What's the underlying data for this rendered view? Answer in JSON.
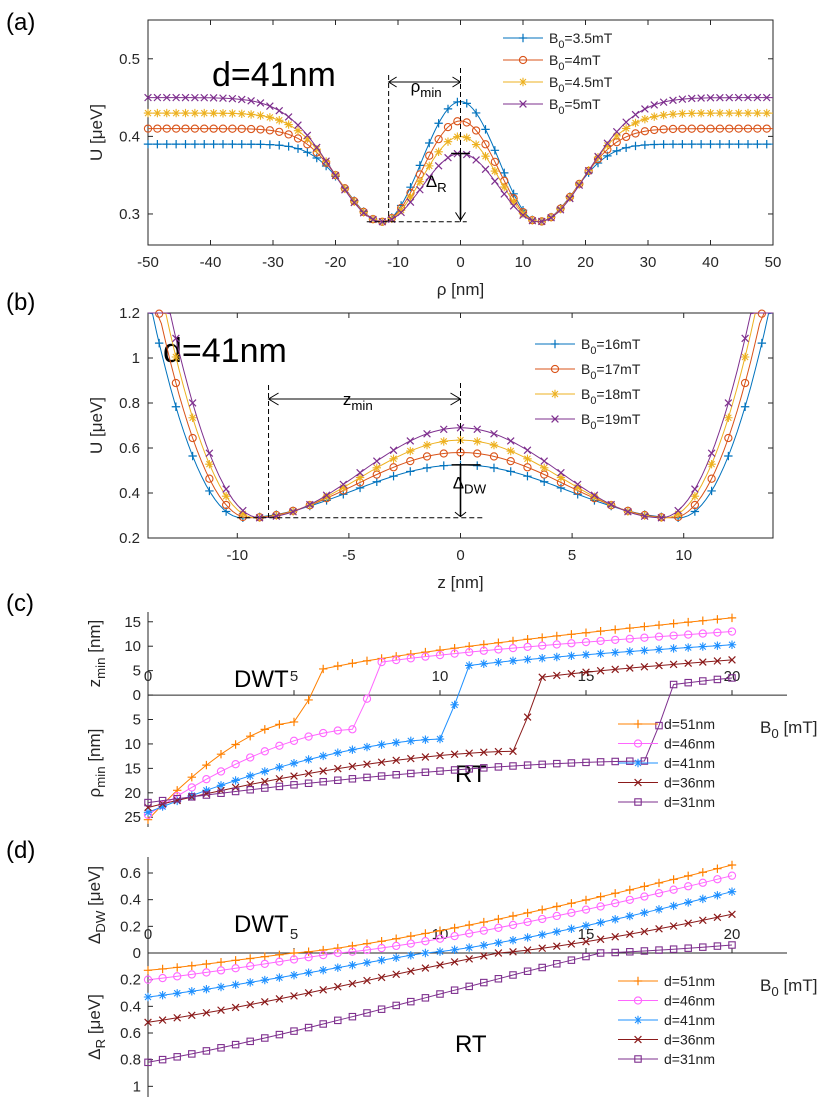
{
  "chart_data": [
    {
      "type": "line",
      "panel_label": "(a)",
      "annotation": "d=41nm",
      "xlabel": "ρ [nm]",
      "ylabel": "U [μeV]",
      "xlim": [
        -50,
        50
      ],
      "ylim": [
        0.26,
        0.55
      ],
      "xticks": [
        -50,
        -40,
        -30,
        -20,
        -10,
        0,
        10,
        20,
        30,
        40,
        50
      ],
      "yticks": [
        0.3,
        0.4,
        0.5
      ],
      "markers": {
        "rho_min": "ρmin",
        "delta_R": "ΔR"
      },
      "series": [
        {
          "name": "B0=3.5mT",
          "color": "#0072BD",
          "marker": "+",
          "far": 0.39,
          "min": 0.29,
          "max": 0.445,
          "xmin": 12.5,
          "w": 8
        },
        {
          "name": "B0=4mT",
          "color": "#D95319",
          "marker": "o",
          "far": 0.41,
          "min": 0.29,
          "max": 0.42,
          "xmin": 12.5,
          "w": 9
        },
        {
          "name": "B0=4.5mT",
          "color": "#EDB120",
          "marker": "*",
          "far": 0.43,
          "min": 0.29,
          "max": 0.4,
          "xmin": 12.5,
          "w": 10
        },
        {
          "name": "B0=5mT",
          "color": "#7E2F8E",
          "marker": "x",
          "far": 0.45,
          "min": 0.29,
          "max": 0.378,
          "xmin": 12.5,
          "w": 11
        }
      ]
    },
    {
      "type": "line",
      "panel_label": "(b)",
      "annotation": "d=41nm",
      "xlabel": "z [nm]",
      "ylabel": "U [μeV]",
      "xlim": [
        -14,
        14
      ],
      "ylim": [
        0.2,
        1.2
      ],
      "xticks": [
        -10,
        -5,
        0,
        5,
        10
      ],
      "yticks": [
        0.2,
        0.4,
        0.6,
        0.8,
        1,
        1.2
      ],
      "markers": {
        "z_min": "zmin",
        "delta_DW": "ΔDW"
      },
      "series": [
        {
          "name": "B0=16mT",
          "color": "#0072BD",
          "marker": "+",
          "zmin": 9.8,
          "max": 0.525
        },
        {
          "name": "B0=17mT",
          "color": "#D95319",
          "marker": "o",
          "zmin": 9.5,
          "max": 0.58
        },
        {
          "name": "B0=18mT",
          "color": "#EDB120",
          "marker": "*",
          "zmin": 9.2,
          "max": 0.635
        },
        {
          "name": "B0=19mT",
          "color": "#7E2F8E",
          "marker": "x",
          "zmin": 9.0,
          "max": 0.69
        }
      ]
    },
    {
      "type": "line",
      "panel_label": "(c)",
      "xlabel": "B0 [mT]",
      "ylabel_top": "zmin [nm]",
      "ylabel_bottom": "ρmin [nm]",
      "xlim": [
        0,
        20
      ],
      "ylim": [
        -27,
        17
      ],
      "xticks": [
        0,
        5,
        10,
        15,
        20
      ],
      "ytick_values": [
        15,
        10,
        5,
        0,
        -5,
        -10,
        -15,
        -20,
        -25
      ],
      "ytick_labels": [
        "15",
        "10",
        "5",
        "0",
        "5",
        "10",
        "15",
        "20",
        "25"
      ],
      "region_top": "DWT",
      "region_bottom": "RT",
      "series": [
        {
          "name": "d=51nm",
          "color": "#FF8000",
          "marker": "+",
          "start": -25.5,
          "trans": 5.0,
          "preTrans": -5.5,
          "jump": 0.0,
          "post": 3.5,
          "end": 15.8
        },
        {
          "name": "d=46nm",
          "color": "#FF66FF",
          "marker": "o",
          "start": -24.5,
          "trans": 7.0,
          "preTrans": -7.0,
          "jump": 0.5,
          "post": 5.5,
          "end": 13.0
        },
        {
          "name": "d=41nm",
          "color": "#1E90FF",
          "marker": "*",
          "start": -24.0,
          "trans": 10.0,
          "preTrans": -9.0,
          "jump": 0.5,
          "post": 5.0,
          "end": 10.3
        },
        {
          "name": "d=36nm",
          "color": "#8B1A1A",
          "marker": "x",
          "start": -23.0,
          "trans": 12.5,
          "preTrans": -11.5,
          "jump": 0.5,
          "post": 2.5,
          "end": 7.2
        },
        {
          "name": "d=31nm",
          "color": "#7E2F8E",
          "marker": "s",
          "start": -22.0,
          "trans": 17.0,
          "preTrans": -13.5,
          "jump": 0.5,
          "post": 1.0,
          "end": 3.5
        }
      ]
    },
    {
      "type": "line",
      "panel_label": "(d)",
      "xlabel": "B0 [mT]",
      "ylabel_top": "ΔDW [μeV]",
      "ylabel_bottom": "ΔR [μeV]",
      "xlim": [
        0,
        20
      ],
      "ylim": [
        -1.08,
        0.72
      ],
      "xticks": [
        0,
        5,
        10,
        15,
        20
      ],
      "ytick_values": [
        0.6,
        0.4,
        0.2,
        0,
        -0.2,
        -0.4,
        -0.6,
        -0.8,
        -1.0
      ],
      "ytick_labels": [
        "0.6",
        "0.4",
        "0.2",
        "0",
        "0.2",
        "0.4",
        "0.6",
        "0.8",
        "1"
      ],
      "region_top": "DWT",
      "region_bottom": "RT",
      "series": [
        {
          "name": "d=51nm",
          "color": "#FF8000",
          "marker": "+",
          "start": -0.13,
          "zero": 5.0,
          "end": 0.66
        },
        {
          "name": "d=46nm",
          "color": "#FF66FF",
          "marker": "o",
          "start": -0.2,
          "zero": 6.5,
          "end": 0.58
        },
        {
          "name": "d=41nm",
          "color": "#1E90FF",
          "marker": "*",
          "start": -0.33,
          "zero": 9.5,
          "end": 0.46
        },
        {
          "name": "d=36nm",
          "color": "#8B1A1A",
          "marker": "x",
          "start": -0.52,
          "zero": 12.0,
          "end": 0.29
        },
        {
          "name": "d=31nm",
          "color": "#7E2F8E",
          "marker": "s",
          "start": -0.82,
          "zero": 15.5,
          "end": 0.06
        }
      ]
    }
  ]
}
